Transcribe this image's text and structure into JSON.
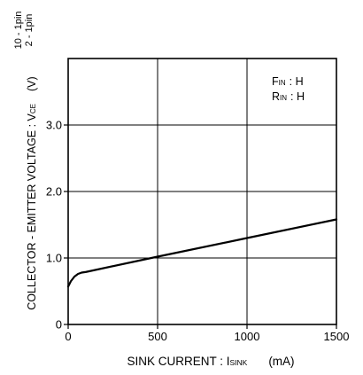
{
  "chart_data": {
    "type": "line",
    "xlabel": {
      "main": "SINK CURRENT : ",
      "symbol_prefix": "I",
      "symbol_sub": "SINK",
      "unit": "(mA)"
    },
    "ylabel": {
      "main": "COLLECTOR - EMITTER VOLTAGE : V",
      "symbol_sub": "CE",
      "unit": "(V)",
      "pins_top": "10 - 1pin",
      "pins_bottom": "2 - 1pin"
    },
    "xlim": [
      0,
      1500
    ],
    "ylim": [
      0,
      4.0
    ],
    "x_ticks": [
      0,
      500,
      1000,
      1500
    ],
    "x_tick_labels": [
      "0",
      "500",
      "1000",
      "1500"
    ],
    "y_ticks": [
      0,
      1.0,
      2.0,
      3.0
    ],
    "y_tick_labels": [
      "0",
      "1.0",
      "2.0",
      "3.0"
    ],
    "grid": true,
    "legend_position": "top-right",
    "conditions": [
      {
        "prefix": "F",
        "sub": "IN",
        "value": ": H"
      },
      {
        "prefix": "R",
        "sub": "IN",
        "value": ": H"
      }
    ],
    "series": [
      {
        "x": [
          0,
          15,
          35,
          55,
          75,
          100,
          500,
          1000,
          1500
        ],
        "y": [
          0.57,
          0.65,
          0.72,
          0.76,
          0.78,
          0.79,
          1.02,
          1.3,
          1.58
        ]
      }
    ]
  },
  "colors": {
    "axis": "#000000",
    "grid": "#000000",
    "line": "#000000",
    "background": "#ffffff"
  }
}
